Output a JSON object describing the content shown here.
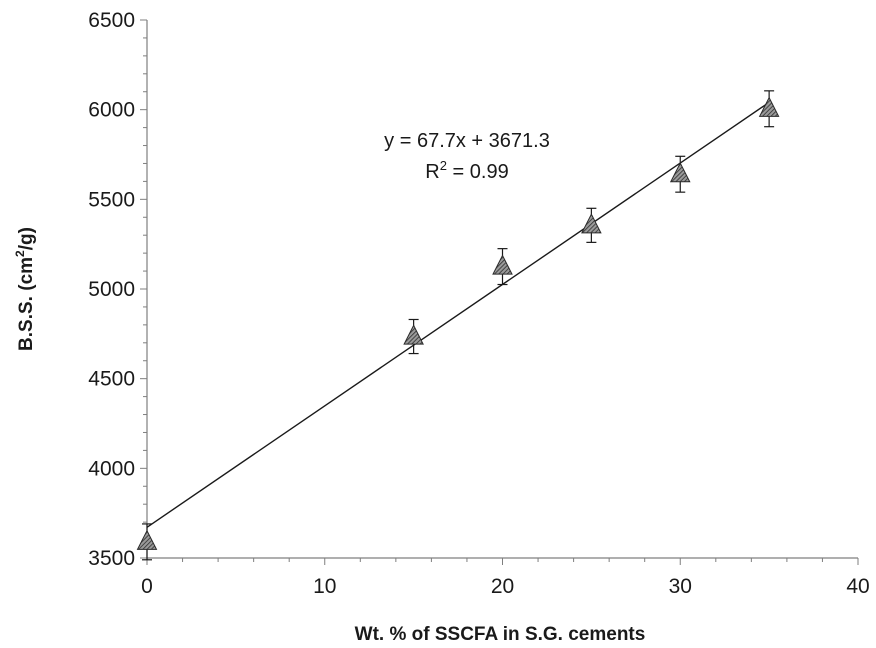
{
  "chart_data": {
    "type": "scatter",
    "title": "",
    "xlabel": "Wt. % of SSCFA in  S.G. cements",
    "ylabel": "B.S.S. (cm²/g)",
    "ylabel_parts": {
      "pre": "B.S.S. (cm",
      "sup": "2",
      "post": "/g)"
    },
    "xlim": [
      0,
      40
    ],
    "ylim": [
      3500,
      6500
    ],
    "x_ticks": [
      0,
      10,
      20,
      30,
      40
    ],
    "y_ticks": [
      3500,
      4000,
      4500,
      5000,
      5500,
      6000,
      6500
    ],
    "x_tick_labels": [
      "0",
      "10",
      "20",
      "30",
      "40"
    ],
    "y_tick_labels": [
      "3500",
      "4000",
      "4500",
      "5000",
      "5500",
      "6000",
      "6500"
    ],
    "grid": false,
    "legend": "none",
    "series": [
      {
        "marker": "triangle",
        "x": [
          0,
          15,
          20,
          25,
          30,
          35
        ],
        "y": [
          3590,
          4735,
          5125,
          5355,
          5640,
          6005
        ],
        "error": [
          100,
          95,
          100,
          95,
          100,
          100
        ]
      }
    ],
    "trendline": {
      "slope": 67.7,
      "intercept": 3671.3,
      "x_range": [
        0,
        35
      ]
    },
    "annotations": {
      "equation": "y = 67.7x + 3671.3",
      "r2_pre": "R",
      "r2_sup": "2",
      "r2_post": " = 0.99"
    }
  }
}
